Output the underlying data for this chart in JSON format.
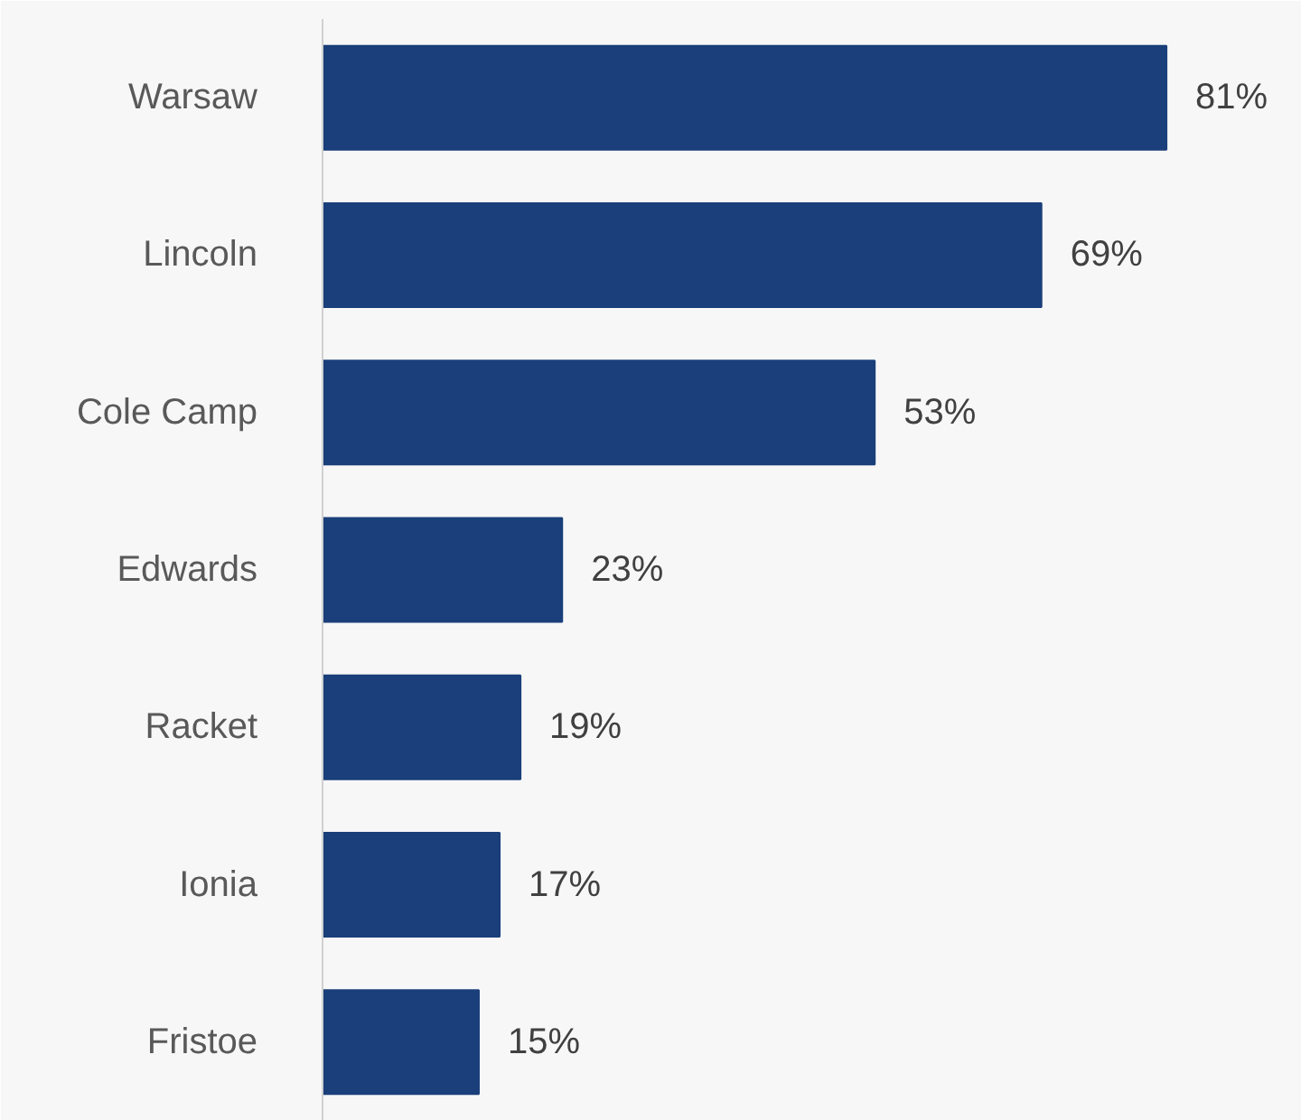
{
  "chart_data": {
    "type": "bar",
    "orientation": "horizontal",
    "categories": [
      "Warsaw",
      "Lincoln",
      "Cole Camp",
      "Edwards",
      "Racket",
      "Ionia",
      "Fristoe"
    ],
    "values": [
      81,
      69,
      53,
      23,
      19,
      17,
      15
    ],
    "color": "#1a3f7a",
    "value_labels": [
      "81%",
      "69%",
      "53%",
      "23%",
      "19%",
      "17%",
      "15%"
    ],
    "xlim": [
      0,
      94
    ],
    "tick_labels": "y",
    "grid": false
  }
}
